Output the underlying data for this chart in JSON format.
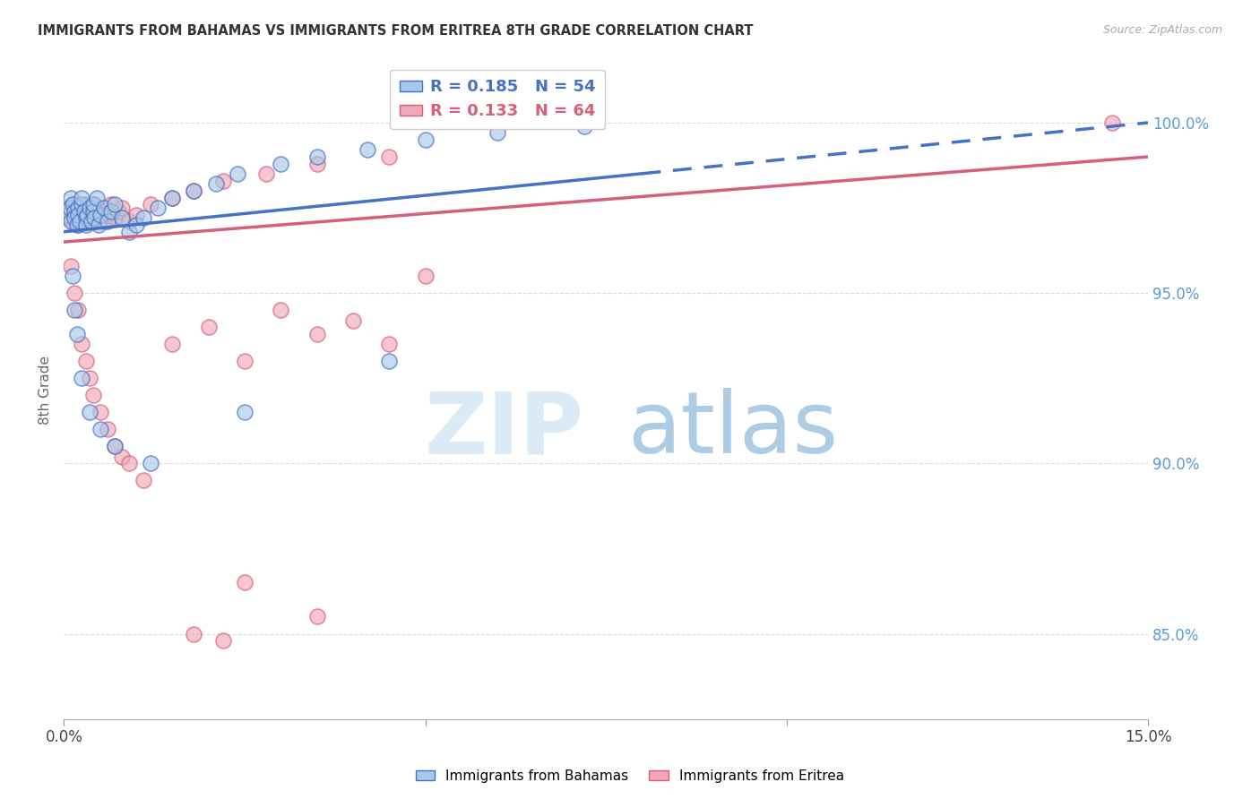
{
  "title": "IMMIGRANTS FROM BAHAMAS VS IMMIGRANTS FROM ERITREA 8TH GRADE CORRELATION CHART",
  "source": "Source: ZipAtlas.com",
  "ylabel": "8th Grade",
  "xmin": 0.0,
  "xmax": 15.0,
  "ymin": 82.5,
  "ymax": 101.8,
  "legend_blue_R": "0.185",
  "legend_blue_N": "54",
  "legend_pink_R": "0.133",
  "legend_pink_N": "64",
  "blue_color": "#A8C8E8",
  "pink_color": "#F0A8B8",
  "trend_blue": "#4472C4",
  "trend_pink": "#D4607A",
  "grid_color": "#DDDDDD",
  "right_axis_color": "#5B9BD5",
  "blue_x": [
    0.05,
    0.08,
    0.1,
    0.1,
    0.12,
    0.15,
    0.15,
    0.18,
    0.2,
    0.2,
    0.22,
    0.25,
    0.25,
    0.28,
    0.3,
    0.3,
    0.32,
    0.35,
    0.38,
    0.4,
    0.4,
    0.42,
    0.45,
    0.48,
    0.5,
    0.55,
    0.6,
    0.65,
    0.7,
    0.8,
    0.9,
    1.0,
    1.1,
    1.3,
    1.5,
    1.8,
    2.1,
    2.4,
    3.0,
    3.5,
    4.2,
    5.0,
    6.0,
    7.2,
    0.12,
    0.15,
    0.18,
    0.25,
    0.35,
    0.5,
    0.7,
    1.2,
    2.5,
    4.5
  ],
  "blue_y": [
    97.3,
    97.5,
    97.1,
    97.8,
    97.6,
    97.4,
    97.2,
    97.0,
    97.5,
    97.3,
    97.1,
    97.6,
    97.8,
    97.4,
    97.2,
    97.0,
    97.3,
    97.5,
    97.1,
    97.4,
    97.6,
    97.2,
    97.8,
    97.0,
    97.3,
    97.5,
    97.1,
    97.4,
    97.6,
    97.2,
    96.8,
    97.0,
    97.2,
    97.5,
    97.8,
    98.0,
    98.2,
    98.5,
    98.8,
    99.0,
    99.2,
    99.5,
    99.7,
    99.9,
    95.5,
    94.5,
    93.8,
    92.5,
    91.5,
    91.0,
    90.5,
    90.0,
    91.5,
    93.0
  ],
  "pink_x": [
    0.05,
    0.08,
    0.1,
    0.12,
    0.15,
    0.15,
    0.18,
    0.2,
    0.2,
    0.22,
    0.25,
    0.25,
    0.28,
    0.3,
    0.3,
    0.32,
    0.35,
    0.38,
    0.4,
    0.42,
    0.45,
    0.48,
    0.5,
    0.55,
    0.6,
    0.65,
    0.7,
    0.75,
    0.8,
    0.9,
    1.0,
    1.2,
    1.5,
    1.8,
    2.2,
    2.8,
    3.5,
    4.5,
    14.5,
    0.1,
    0.15,
    0.2,
    0.25,
    0.3,
    0.35,
    0.4,
    0.5,
    0.6,
    0.7,
    0.8,
    0.9,
    1.1,
    1.5,
    2.0,
    2.5,
    3.0,
    3.5,
    4.0,
    5.0,
    2.5,
    3.5,
    1.8,
    2.2,
    4.5
  ],
  "pink_y": [
    97.2,
    97.5,
    97.3,
    97.1,
    97.4,
    97.6,
    97.2,
    97.0,
    97.4,
    97.3,
    97.5,
    97.1,
    97.4,
    97.2,
    97.6,
    97.3,
    97.5,
    97.1,
    97.3,
    97.6,
    97.2,
    97.4,
    97.5,
    97.1,
    97.3,
    97.6,
    97.2,
    97.4,
    97.5,
    97.1,
    97.3,
    97.6,
    97.8,
    98.0,
    98.3,
    98.5,
    98.8,
    99.0,
    100.0,
    95.8,
    95.0,
    94.5,
    93.5,
    93.0,
    92.5,
    92.0,
    91.5,
    91.0,
    90.5,
    90.2,
    90.0,
    89.5,
    93.5,
    94.0,
    93.0,
    94.5,
    93.8,
    94.2,
    95.5,
    86.5,
    85.5,
    85.0,
    84.8,
    93.5
  ]
}
